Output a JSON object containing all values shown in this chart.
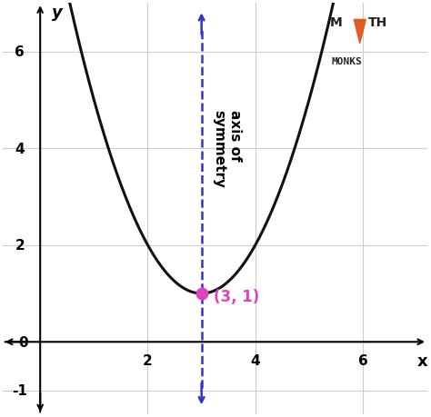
{
  "title": "Axis of Symmetry",
  "xlim": [
    -0.7,
    7.2
  ],
  "ylim": [
    -1.5,
    7.0
  ],
  "xticks": [
    0,
    2,
    4,
    6
  ],
  "yticks": [
    -1,
    0,
    2,
    4,
    6
  ],
  "vertex_x": 3,
  "vertex_y": 1,
  "parabola_a": 1,
  "axis_color": "#3333cc",
  "parabola_color": "#111111",
  "vertex_color": "#dd44bb",
  "grid_color": "#cccccc",
  "axis_of_sym_label": "axis of\nsymmetry",
  "vertex_label": "(3, 1)",
  "logo_color": "#222222",
  "logo_triangle_color": "#e05c20",
  "bg_color": "#ffffff",
  "xlabel": "x",
  "ylabel": "y"
}
